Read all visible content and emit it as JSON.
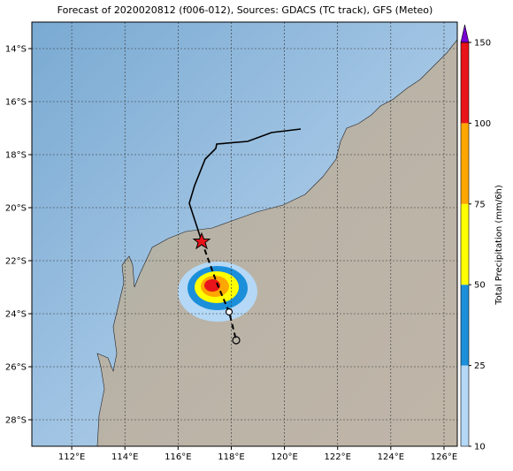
{
  "title": "Forecast of 2020020812 (f006-012), Sources: GDACS (TC track), GFS (Meteo)",
  "map": {
    "lonlim": [
      110.5,
      126.5
    ],
    "latlim": [
      -29,
      -13
    ],
    "lat_ticks": [
      {
        "value": -14,
        "label": "14°S"
      },
      {
        "value": -16,
        "label": "16°S"
      },
      {
        "value": -18,
        "label": "18°S"
      },
      {
        "value": -20,
        "label": "20°S"
      },
      {
        "value": -22,
        "label": "22°S"
      },
      {
        "value": -24,
        "label": "24°S"
      },
      {
        "value": -26,
        "label": "26°S"
      },
      {
        "value": -28,
        "label": "28°S"
      }
    ],
    "lon_ticks": [
      {
        "value": 112,
        "label": "112°E"
      },
      {
        "value": 114,
        "label": "114°E"
      },
      {
        "value": 116,
        "label": "116°E"
      },
      {
        "value": 118,
        "label": "118°E"
      },
      {
        "value": 120,
        "label": "120°E"
      },
      {
        "value": 122,
        "label": "122°E"
      },
      {
        "value": 124,
        "label": "124°E"
      },
      {
        "value": 126,
        "label": "126°E"
      }
    ]
  },
  "colorbar": {
    "label": "Total Precipitation (mm/6h)",
    "ticks": [
      10,
      25,
      50,
      75,
      100,
      150
    ],
    "colors": [
      "#b4d8f6",
      "#1b8fda",
      "#ffff00",
      "#ffa600",
      "#e8141a"
    ],
    "extend_color": "#7b00d4"
  }
}
